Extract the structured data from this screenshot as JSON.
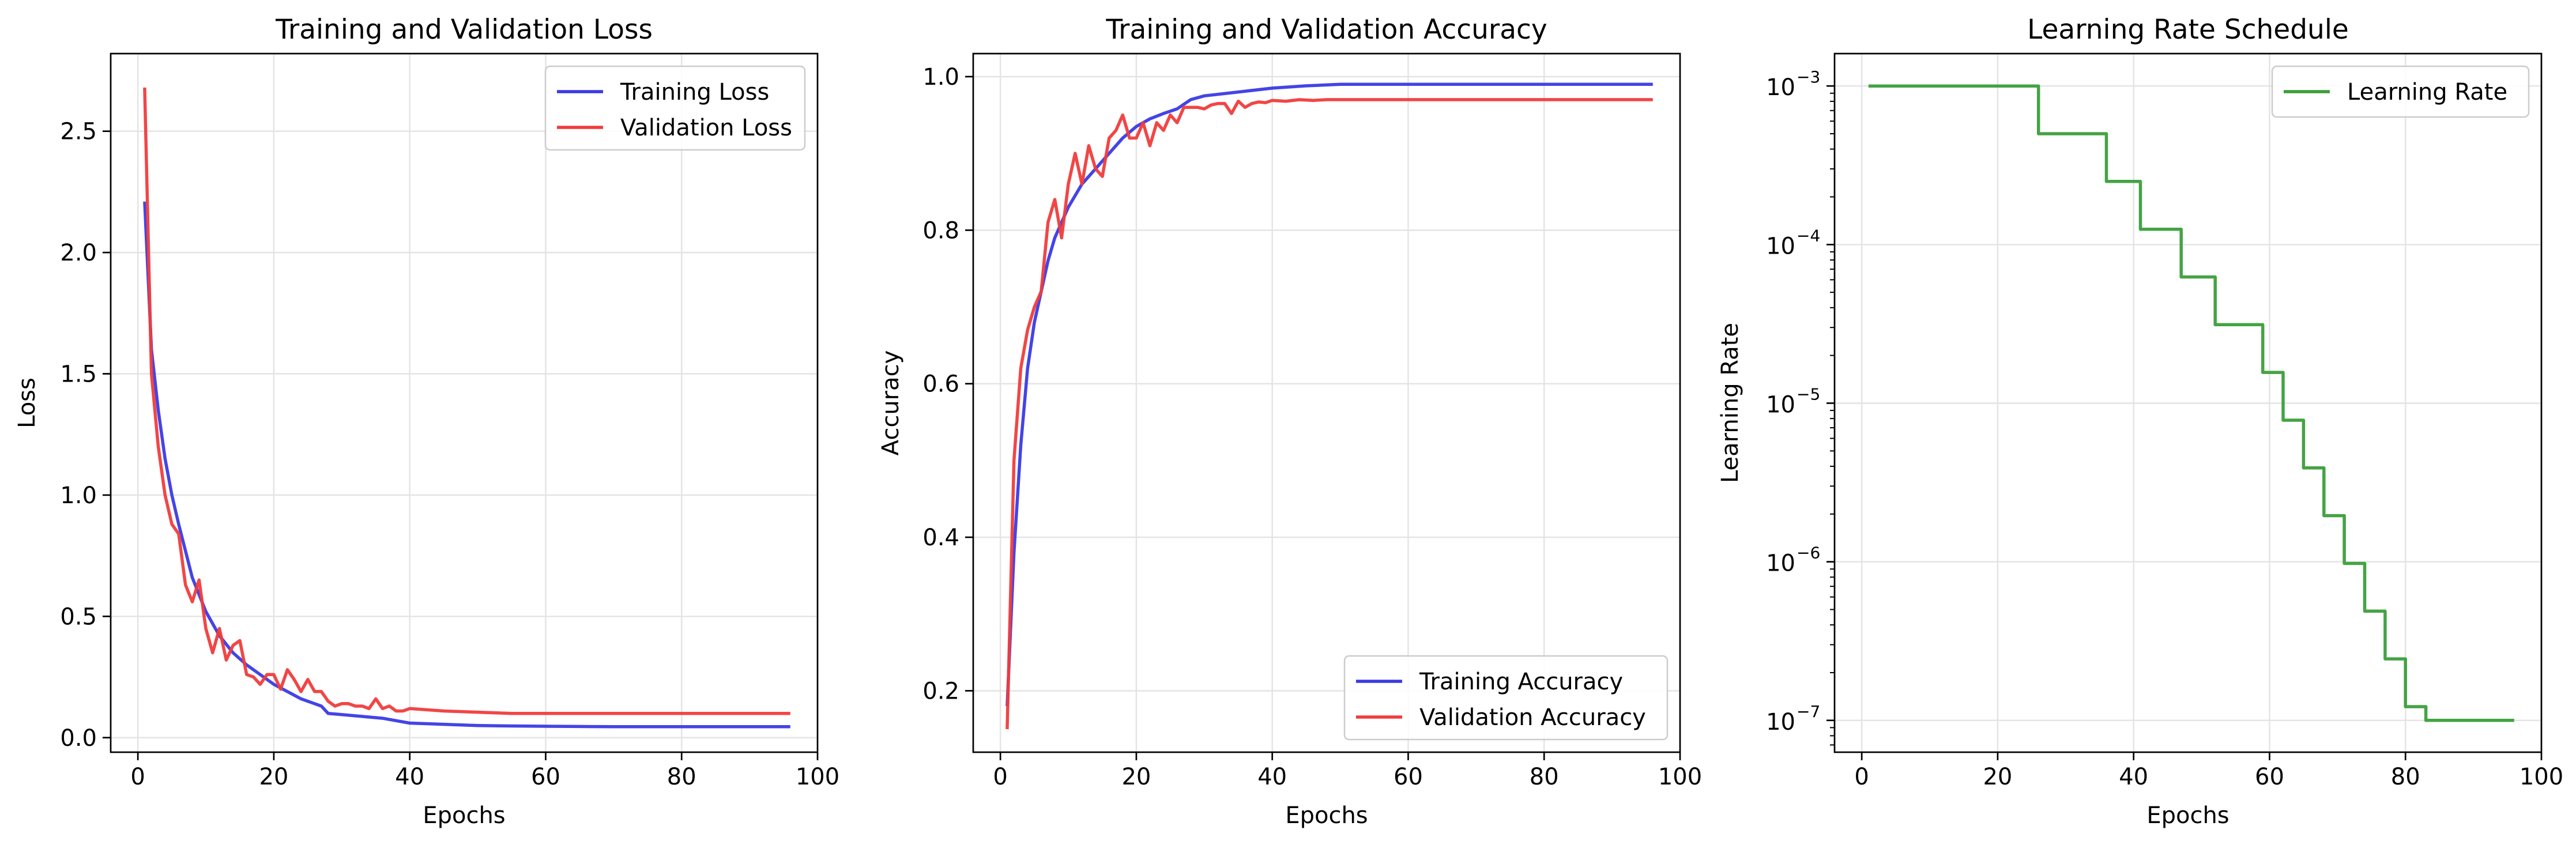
{
  "chart_data": [
    {
      "type": "line",
      "title": "Training and Validation Loss",
      "xlabel": "Epochs",
      "ylabel": "Loss",
      "xlim": [
        -4,
        100
      ],
      "ylim": [
        -0.06,
        2.82
      ],
      "xticks": [
        0,
        20,
        40,
        60,
        80,
        100
      ],
      "xtick_labels": [
        "0",
        "20",
        "40",
        "60",
        "80",
        "100"
      ],
      "yticks": [
        0,
        0.5,
        1.0,
        1.5,
        2.0,
        2.5
      ],
      "ytick_labels": [
        "0.0",
        "0.5",
        "1.0",
        "1.5",
        "2.0",
        "2.5"
      ],
      "log_y": false,
      "grid": true,
      "legend": "top-right",
      "series": [
        {
          "name": "Training Loss",
          "color": "#3a3ae6",
          "x": [
            1,
            2,
            3,
            4,
            5,
            6,
            7,
            8,
            10,
            12,
            14,
            16,
            18,
            20,
            22,
            24,
            26,
            27,
            28,
            30,
            32,
            34,
            36,
            38,
            40,
            45,
            50,
            55,
            60,
            65,
            70,
            75,
            80,
            85,
            90,
            96
          ],
          "y": [
            2.21,
            1.6,
            1.35,
            1.15,
            1.0,
            0.88,
            0.77,
            0.66,
            0.52,
            0.42,
            0.35,
            0.3,
            0.26,
            0.22,
            0.19,
            0.16,
            0.14,
            0.13,
            0.1,
            0.095,
            0.09,
            0.085,
            0.08,
            0.07,
            0.06,
            0.055,
            0.05,
            0.048,
            0.047,
            0.046,
            0.045,
            0.045,
            0.045,
            0.045,
            0.045,
            0.045
          ]
        },
        {
          "name": "Validation Loss",
          "color": "#f03c3c",
          "x": [
            1,
            2,
            3,
            4,
            5,
            6,
            7,
            8,
            9,
            10,
            11,
            12,
            13,
            14,
            15,
            16,
            17,
            18,
            19,
            20,
            21,
            22,
            23,
            24,
            25,
            26,
            27,
            28,
            29,
            30,
            31,
            32,
            33,
            34,
            35,
            36,
            37,
            38,
            39,
            40,
            45,
            50,
            55,
            60,
            70,
            80,
            90,
            96
          ],
          "y": [
            2.68,
            1.5,
            1.2,
            1.0,
            0.88,
            0.84,
            0.63,
            0.56,
            0.65,
            0.45,
            0.35,
            0.45,
            0.32,
            0.38,
            0.4,
            0.26,
            0.25,
            0.22,
            0.26,
            0.26,
            0.2,
            0.28,
            0.24,
            0.19,
            0.24,
            0.19,
            0.19,
            0.15,
            0.13,
            0.14,
            0.14,
            0.13,
            0.13,
            0.12,
            0.16,
            0.12,
            0.13,
            0.11,
            0.11,
            0.12,
            0.11,
            0.105,
            0.1,
            0.1,
            0.1,
            0.1,
            0.1,
            0.1
          ]
        }
      ]
    },
    {
      "type": "line",
      "title": "Training and Validation Accuracy",
      "xlabel": "Epochs",
      "ylabel": "Accuracy",
      "xlim": [
        -4,
        100
      ],
      "ylim": [
        0.12,
        1.03
      ],
      "xticks": [
        0,
        20,
        40,
        60,
        80,
        100
      ],
      "xtick_labels": [
        "0",
        "20",
        "40",
        "60",
        "80",
        "100"
      ],
      "yticks": [
        0.2,
        0.4,
        0.6,
        0.8,
        1.0
      ],
      "ytick_labels": [
        "0.2",
        "0.4",
        "0.6",
        "0.8",
        "1.0"
      ],
      "log_y": false,
      "grid": true,
      "legend": "bottom-right",
      "series": [
        {
          "name": "Training Accuracy",
          "color": "#3a3ae6",
          "x": [
            1,
            2,
            3,
            4,
            5,
            6,
            7,
            8,
            10,
            12,
            14,
            16,
            18,
            20,
            22,
            24,
            26,
            28,
            30,
            35,
            40,
            45,
            50,
            55,
            60,
            65,
            70,
            75,
            80,
            85,
            90,
            96
          ],
          "y": [
            0.18,
            0.38,
            0.52,
            0.62,
            0.68,
            0.72,
            0.76,
            0.79,
            0.83,
            0.86,
            0.88,
            0.9,
            0.92,
            0.935,
            0.945,
            0.952,
            0.958,
            0.97,
            0.975,
            0.98,
            0.985,
            0.988,
            0.99,
            0.99,
            0.99,
            0.99,
            0.99,
            0.99,
            0.99,
            0.99,
            0.99,
            0.99
          ]
        },
        {
          "name": "Validation Accuracy",
          "color": "#f03c3c",
          "x": [
            1,
            2,
            3,
            4,
            5,
            6,
            7,
            8,
            9,
            10,
            11,
            12,
            13,
            14,
            15,
            16,
            17,
            18,
            19,
            20,
            21,
            22,
            23,
            24,
            25,
            26,
            27,
            28,
            29,
            30,
            31,
            32,
            33,
            34,
            35,
            36,
            37,
            38,
            39,
            40,
            42,
            44,
            46,
            48,
            50,
            55,
            60,
            70,
            80,
            90,
            96
          ],
          "y": [
            0.15,
            0.5,
            0.62,
            0.67,
            0.7,
            0.72,
            0.81,
            0.84,
            0.79,
            0.86,
            0.9,
            0.86,
            0.91,
            0.88,
            0.87,
            0.92,
            0.93,
            0.95,
            0.92,
            0.92,
            0.94,
            0.91,
            0.94,
            0.93,
            0.95,
            0.94,
            0.96,
            0.96,
            0.96,
            0.958,
            0.963,
            0.965,
            0.965,
            0.952,
            0.968,
            0.96,
            0.965,
            0.967,
            0.966,
            0.969,
            0.968,
            0.97,
            0.969,
            0.97,
            0.97,
            0.97,
            0.97,
            0.97,
            0.97,
            0.97,
            0.97
          ]
        }
      ]
    },
    {
      "type": "line",
      "title": "Learning Rate Schedule",
      "xlabel": "Epochs",
      "ylabel": "Learning Rate",
      "xlim": [
        -4,
        100
      ],
      "ylim": [
        6.3e-08,
        0.0016
      ],
      "xticks": [
        0,
        20,
        40,
        60,
        80,
        100
      ],
      "xtick_labels": [
        "0",
        "20",
        "40",
        "60",
        "80",
        "100"
      ],
      "yticks": [
        1e-07,
        1e-06,
        1e-05,
        0.0001,
        0.001
      ],
      "ytick_labels": [
        {
          "base": "10",
          "exp": "−7"
        },
        {
          "base": "10",
          "exp": "−6"
        },
        {
          "base": "10",
          "exp": "−5"
        },
        {
          "base": "10",
          "exp": "−4"
        },
        {
          "base": "10",
          "exp": "−3"
        }
      ],
      "log_y": true,
      "step": true,
      "grid": true,
      "legend": "top-right",
      "series": [
        {
          "name": "Learning Rate",
          "color": "#3a9e3a",
          "x": [
            1,
            26,
            36,
            41,
            47,
            52,
            59,
            62,
            65,
            68,
            71,
            74,
            77,
            80,
            83,
            96
          ],
          "y": [
            0.001,
            0.0005,
            0.00025,
            0.000125,
            6.25e-05,
            3.125e-05,
            1.5625e-05,
            7.8125e-06,
            3.9063e-06,
            1.9531e-06,
            9.7656e-07,
            4.8828e-07,
            2.4414e-07,
            1.2207e-07,
            1e-07,
            1e-07
          ]
        }
      ]
    }
  ]
}
